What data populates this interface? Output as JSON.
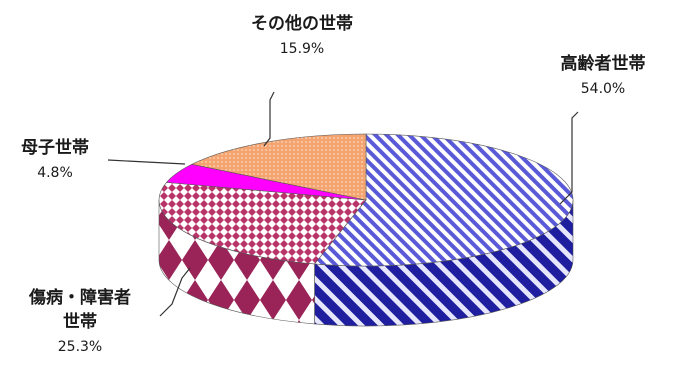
{
  "chart_data": {
    "type": "pie",
    "title": "",
    "slices": [
      {
        "label": "高齢者世帯",
        "value": 54.0,
        "value_label": "54.0%",
        "color": "#6f6fe6",
        "pattern": "diagonal-stripes"
      },
      {
        "label": "傷病・障害者世帯",
        "value": 25.3,
        "value_label": "25.3%",
        "color": "#b8336a",
        "pattern": "diamond-check"
      },
      {
        "label": "母子世帯",
        "value": 4.8,
        "value_label": "4.8%",
        "color": "#ff00ff",
        "pattern": "solid"
      },
      {
        "label": "その他の世帯",
        "value": 15.9,
        "value_label": "15.9%",
        "color": "#f4a470",
        "pattern": "fine-dots"
      }
    ],
    "style": "3d-pie",
    "legend": "none"
  },
  "labels": {
    "s0_name": "高齢者世帯",
    "s0_pct": "54.0%",
    "s1_name_line1": "傷病・障害者",
    "s1_name_line2": "世帯",
    "s1_pct": "25.3%",
    "s2_name": "母子世帯",
    "s2_pct": "4.8%",
    "s3_name": "その他の世帯",
    "s3_pct": "15.9%"
  }
}
